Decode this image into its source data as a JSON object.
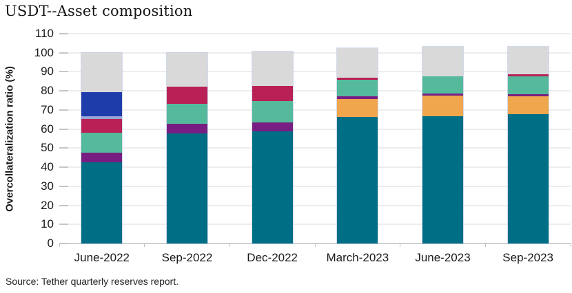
{
  "header": {
    "title": "USDT--Asset composition"
  },
  "footer": {
    "source": "Source: Tether quarterly reserves report."
  },
  "chart_data": {
    "type": "bar",
    "stacked": true,
    "title": "USDT--Asset composition",
    "xlabel": "",
    "ylabel": "Overcollateralization ratio (%)",
    "ylim": [
      0,
      110
    ],
    "yticks": [
      0,
      10,
      20,
      30,
      40,
      50,
      60,
      70,
      80,
      90,
      100,
      110
    ],
    "grid": true,
    "legend": "none",
    "categories": [
      "June-2022",
      "Sep-2022",
      "Dec-2022",
      "March-2023",
      "June-2023",
      "Sep-2023"
    ],
    "series": [
      {
        "name": "teal-segment",
        "color": "#006E85",
        "values": [
          42.7,
          57.8,
          58.8,
          66.2,
          66.6,
          67.7
        ]
      },
      {
        "name": "orange-segment",
        "color": "#F0A64D",
        "values": [
          0,
          0,
          0,
          9.7,
          10.9,
          9.4
        ]
      },
      {
        "name": "purple-segment",
        "color": "#781E82",
        "values": [
          5.0,
          4.8,
          4.8,
          1.2,
          1.0,
          1.0
        ]
      },
      {
        "name": "green-segment",
        "color": "#55B99B",
        "values": [
          10.5,
          10.5,
          11.0,
          8.9,
          9.2,
          9.7
        ]
      },
      {
        "name": "crimson-segment",
        "color": "#B92055",
        "values": [
          7.1,
          9.3,
          8.1,
          1.1,
          0,
          0.8
        ]
      },
      {
        "name": "periwinkle-segment",
        "color": "#96A5D7",
        "values": [
          1.5,
          0,
          0,
          0,
          0,
          0
        ]
      },
      {
        "name": "blue-segment",
        "color": "#1E3CAA",
        "values": [
          12.7,
          0,
          0,
          0,
          0,
          0
        ]
      },
      {
        "name": "gray-segment",
        "color": "#D9D9D9",
        "values": [
          20.5,
          17.6,
          18.1,
          15.3,
          15.3,
          14.4
        ]
      }
    ],
    "bar_top_values": [
      100.0,
      100.0,
      100.8,
      102.4,
      103.0,
      103.0
    ],
    "style": {
      "grid_color": "#EDEDED",
      "baseline_color": "#CCD0D6",
      "tick_color": "#C6C6C6",
      "text_color": "#1A1A1A",
      "bar_outline_color": "#91A3D4"
    }
  }
}
